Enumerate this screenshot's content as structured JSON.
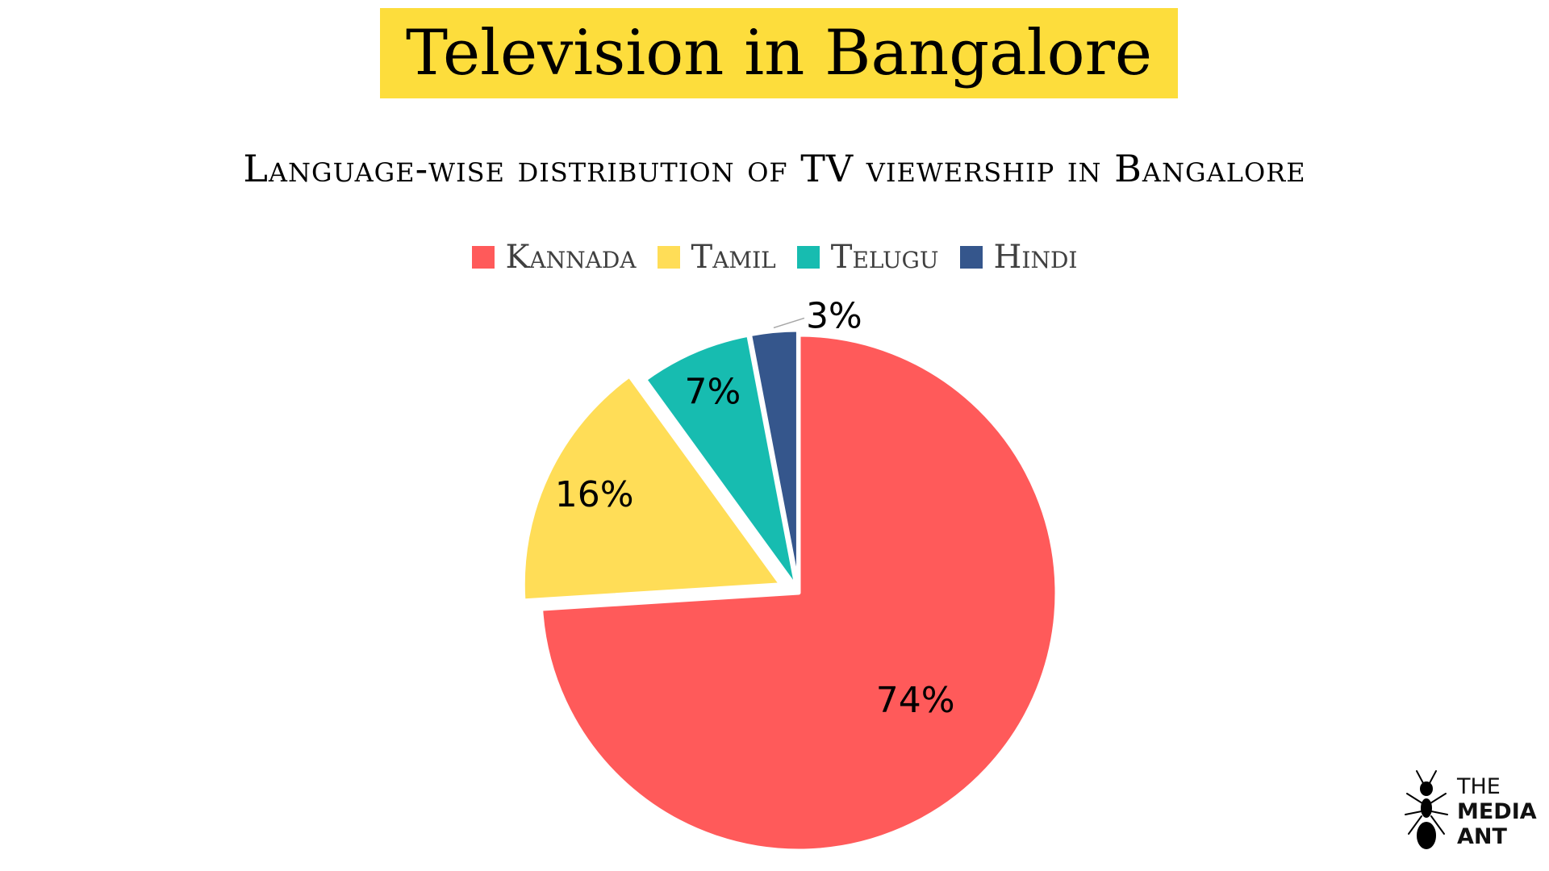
{
  "header": {
    "title": "Television in Bangalore",
    "banner_color": "#FDDD3C"
  },
  "chart_data": {
    "type": "pie",
    "title": "Language-wise distribution of TV viewership in Bangalore",
    "legend_position": "top",
    "categories": [
      "Kannada",
      "Tamil",
      "Telugu",
      "Hindi"
    ],
    "values": [
      74,
      16,
      7,
      3
    ],
    "labels": [
      "74%",
      "16%",
      "7%",
      "3%"
    ],
    "colors": [
      "#FF5A5A",
      "#FFDD57",
      "#17BCB0",
      "#35568C"
    ]
  },
  "logo": {
    "line1": "THE",
    "line2": "MEDIA",
    "line3": "ANT"
  }
}
